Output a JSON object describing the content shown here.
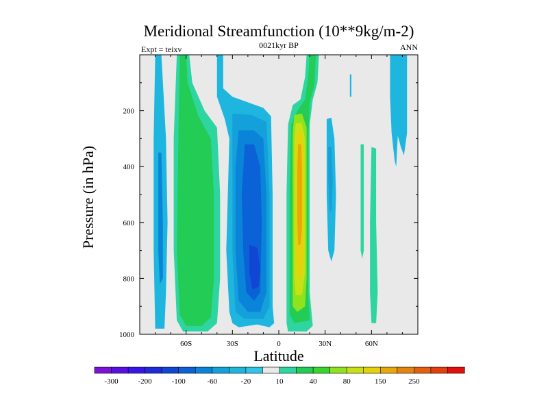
{
  "chart_data": {
    "type": "heatmap",
    "title": "Meridional Streamfunction (10**9kg/m-2)",
    "subtitle_left": "Expt = teixv",
    "subtitle_center": "0021kyr BP",
    "subtitle_right": "ANN",
    "xlabel": "Latitude",
    "ylabel": "Pressure (in hPa)",
    "xlim": [
      -90,
      90
    ],
    "ylim": [
      1000,
      0
    ],
    "x_ticks": [
      {
        "value": -60,
        "label": "60S"
      },
      {
        "value": -30,
        "label": "30S"
      },
      {
        "value": 0,
        "label": "0"
      },
      {
        "value": 30,
        "label": "30N"
      },
      {
        "value": 60,
        "label": "60N"
      }
    ],
    "y_ticks": [
      {
        "value": 200,
        "label": "200"
      },
      {
        "value": 400,
        "label": "400"
      },
      {
        "value": 600,
        "label": "600"
      },
      {
        "value": 800,
        "label": "800"
      },
      {
        "value": 1000,
        "label": "1000"
      }
    ],
    "colorbar": {
      "colors": [
        "#7a12d8",
        "#5a0fe0",
        "#3a16e6",
        "#1f2ad8",
        "#0f46d4",
        "#0a62d6",
        "#0a84d8",
        "#14a0da",
        "#1eb6df",
        "#2ec6e4",
        "#e9e9e9",
        "#2fd5a0",
        "#22cc55",
        "#38d62a",
        "#8fe21e",
        "#c8e114",
        "#e6d20c",
        "#e8a808",
        "#e58410",
        "#e2600e",
        "#e33e0e",
        "#e0100e"
      ],
      "labels": [
        {
          "index": 1,
          "text": "-300"
        },
        {
          "index": 3,
          "text": "-200"
        },
        {
          "index": 5,
          "text": "-100"
        },
        {
          "index": 7,
          "text": "-60"
        },
        {
          "index": 9,
          "text": "-20"
        },
        {
          "index": 11,
          "text": "10"
        },
        {
          "index": 13,
          "text": "40"
        },
        {
          "index": 15,
          "text": "80"
        },
        {
          "index": 17,
          "text": "150"
        },
        {
          "index": 19,
          "text": "250"
        }
      ]
    },
    "contour_regions": [
      {
        "name": "sh-polar-light",
        "color": "#1eb6df",
        "level": -20,
        "points": [
          [
            -80,
            0
          ],
          [
            -76,
            0
          ],
          [
            -73,
            300
          ],
          [
            -72,
            600
          ],
          [
            -73,
            850
          ],
          [
            -74,
            980
          ],
          [
            -80,
            980
          ],
          [
            -81,
            700
          ],
          [
            -81,
            300
          ]
        ]
      },
      {
        "name": "sh-polar-mid",
        "color": "#0a84d8",
        "level": -60,
        "points": [
          [
            -78,
            350
          ],
          [
            -76,
            350
          ],
          [
            -75,
            600
          ],
          [
            -75,
            800
          ],
          [
            -77,
            820
          ],
          [
            -78,
            700
          ]
        ]
      },
      {
        "name": "sh-ferrel-outer",
        "color": "#2fd5a0",
        "level": 10,
        "points": [
          [
            -66,
            0
          ],
          [
            -58,
            0
          ],
          [
            -56,
            100
          ],
          [
            -48,
            200
          ],
          [
            -40,
            260
          ],
          [
            -38,
            500
          ],
          [
            -38,
            800
          ],
          [
            -40,
            960
          ],
          [
            -46,
            990
          ],
          [
            -62,
            990
          ],
          [
            -66,
            950
          ],
          [
            -68,
            700
          ],
          [
            -68,
            300
          ]
        ]
      },
      {
        "name": "sh-ferrel-inner",
        "color": "#22cc55",
        "level": 20,
        "points": [
          [
            -64,
            0
          ],
          [
            -60,
            0
          ],
          [
            -59,
            100
          ],
          [
            -52,
            220
          ],
          [
            -44,
            300
          ],
          [
            -42,
            500
          ],
          [
            -42,
            800
          ],
          [
            -44,
            940
          ],
          [
            -50,
            970
          ],
          [
            -60,
            970
          ],
          [
            -64,
            930
          ],
          [
            -66,
            700
          ],
          [
            -65,
            300
          ]
        ]
      },
      {
        "name": "sh-hadley-1",
        "color": "#1eb6df",
        "level": -20,
        "points": [
          [
            -40,
            0
          ],
          [
            -36,
            0
          ],
          [
            -36,
            120
          ],
          [
            -30,
            150
          ],
          [
            -20,
            170
          ],
          [
            -10,
            190
          ],
          [
            -5,
            220
          ],
          [
            -4,
            500
          ],
          [
            -4,
            900
          ],
          [
            -3,
            960
          ],
          [
            -6,
            975
          ],
          [
            -14,
            965
          ],
          [
            -26,
            975
          ],
          [
            -30,
            960
          ],
          [
            -32,
            920
          ],
          [
            -34,
            700
          ],
          [
            -33,
            500
          ],
          [
            -32,
            300
          ],
          [
            -35,
            230
          ],
          [
            -40,
            150
          ]
        ]
      },
      {
        "name": "sh-hadley-2",
        "color": "#14a0da",
        "level": -40,
        "points": [
          [
            -30,
            210
          ],
          [
            -18,
            215
          ],
          [
            -8,
            240
          ],
          [
            -6,
            500
          ],
          [
            -6,
            900
          ],
          [
            -10,
            945
          ],
          [
            -22,
            945
          ],
          [
            -28,
            920
          ],
          [
            -30,
            700
          ],
          [
            -30,
            400
          ]
        ]
      },
      {
        "name": "sh-hadley-3",
        "color": "#0a84d8",
        "level": -60,
        "points": [
          [
            -26,
            270
          ],
          [
            -16,
            270
          ],
          [
            -10,
            300
          ],
          [
            -8,
            500
          ],
          [
            -8,
            850
          ],
          [
            -12,
            920
          ],
          [
            -20,
            920
          ],
          [
            -26,
            880
          ],
          [
            -28,
            700
          ],
          [
            -28,
            400
          ]
        ]
      },
      {
        "name": "sh-hadley-4",
        "color": "#0a62d6",
        "level": -80,
        "points": [
          [
            -22,
            320
          ],
          [
            -16,
            320
          ],
          [
            -12,
            400
          ],
          [
            -11,
            600
          ],
          [
            -12,
            850
          ],
          [
            -16,
            880
          ],
          [
            -21,
            850
          ],
          [
            -23,
            700
          ],
          [
            -24,
            500
          ]
        ]
      },
      {
        "name": "sh-hadley-5",
        "color": "#0f46d4",
        "level": -100,
        "points": [
          [
            -19,
            680
          ],
          [
            -14,
            690
          ],
          [
            -12,
            760
          ],
          [
            -13,
            830
          ],
          [
            -17,
            840
          ],
          [
            -19,
            780
          ]
        ]
      },
      {
        "name": "nh-hadley-1",
        "color": "#2fd5a0",
        "level": 10,
        "points": [
          [
            18,
            0
          ],
          [
            26,
            0
          ],
          [
            25,
            100
          ],
          [
            22,
            160
          ],
          [
            20,
            250
          ],
          [
            20,
            600
          ],
          [
            20,
            850
          ],
          [
            22,
            970
          ],
          [
            18,
            990
          ],
          [
            6,
            990
          ],
          [
            5,
            960
          ],
          [
            5,
            500
          ],
          [
            6,
            250
          ],
          [
            9,
            180
          ],
          [
            14,
            160
          ],
          [
            17,
            80
          ]
        ]
      },
      {
        "name": "nh-hadley-2",
        "color": "#22cc55",
        "level": 20,
        "points": [
          [
            20,
            0
          ],
          [
            24,
            0
          ],
          [
            23,
            110
          ],
          [
            20,
            170
          ],
          [
            19,
            300
          ],
          [
            19,
            850
          ],
          [
            20,
            950
          ],
          [
            10,
            960
          ],
          [
            7,
            930
          ],
          [
            7,
            500
          ],
          [
            8,
            250
          ],
          [
            12,
            200
          ],
          [
            17,
            160
          ],
          [
            19,
            80
          ]
        ]
      },
      {
        "name": "nh-hadley-3",
        "color": "#8fe21e",
        "level": 40,
        "points": [
          [
            10,
            215
          ],
          [
            15,
            210
          ],
          [
            18,
            260
          ],
          [
            18,
            800
          ],
          [
            17,
            900
          ],
          [
            12,
            920
          ],
          [
            9,
            900
          ],
          [
            9,
            500
          ],
          [
            9,
            280
          ]
        ]
      },
      {
        "name": "nh-hadley-4",
        "color": "#c8e114",
        "level": 60,
        "points": [
          [
            11,
            245
          ],
          [
            15,
            245
          ],
          [
            17,
            300
          ],
          [
            17,
            780
          ],
          [
            15,
            860
          ],
          [
            11,
            860
          ],
          [
            10,
            800
          ],
          [
            10,
            300
          ]
        ]
      },
      {
        "name": "nh-hadley-5",
        "color": "#e6d20c",
        "level": 80,
        "points": [
          [
            12,
            275
          ],
          [
            15,
            275
          ],
          [
            16,
            350
          ],
          [
            16,
            700
          ],
          [
            15,
            800
          ],
          [
            12,
            800
          ],
          [
            11,
            700
          ],
          [
            11,
            350
          ]
        ]
      },
      {
        "name": "nh-hadley-6",
        "color": "#e8a808",
        "level": 100,
        "points": [
          [
            12.5,
            320
          ],
          [
            14.5,
            320
          ],
          [
            15,
            400
          ],
          [
            15,
            620
          ],
          [
            14,
            680
          ],
          [
            12.5,
            680
          ],
          [
            12,
            600
          ],
          [
            12,
            400
          ]
        ]
      },
      {
        "name": "nh-ferrel-1",
        "color": "#1eb6df",
        "level": -20,
        "points": [
          [
            31,
            230
          ],
          [
            34,
            225
          ],
          [
            36,
            300
          ],
          [
            37,
            500
          ],
          [
            36,
            700
          ],
          [
            34,
            740
          ],
          [
            32,
            700
          ],
          [
            31,
            500
          ]
        ]
      },
      {
        "name": "nh-ferrel-2",
        "color": "#14a0da",
        "level": -40,
        "points": [
          [
            32,
            330
          ],
          [
            34,
            330
          ],
          [
            35,
            450
          ],
          [
            34,
            560
          ],
          [
            33,
            560
          ],
          [
            32,
            450
          ]
        ]
      },
      {
        "name": "nh-ferrel-3",
        "color": "#1eb6df",
        "level": -20,
        "points": [
          [
            46,
            70
          ],
          [
            47,
            70
          ],
          [
            47,
            150
          ],
          [
            46,
            150
          ]
        ]
      },
      {
        "name": "nh-polar-1",
        "color": "#2fd5a0",
        "level": 10,
        "points": [
          [
            60,
            330
          ],
          [
            63,
            335
          ],
          [
            63,
            600
          ],
          [
            64,
            850
          ],
          [
            63,
            960
          ],
          [
            60,
            960
          ],
          [
            59,
            850
          ],
          [
            59,
            600
          ]
        ]
      },
      {
        "name": "nh-polar-2",
        "color": "#2fd5a0",
        "level": 10,
        "points": [
          [
            53,
            320
          ],
          [
            55,
            320
          ],
          [
            55,
            700
          ],
          [
            54,
            730
          ],
          [
            53,
            700
          ]
        ]
      },
      {
        "name": "nh-polar-3",
        "color": "#1eb6df",
        "level": -20,
        "points": [
          [
            72,
            0
          ],
          [
            83,
            0
          ],
          [
            83,
            280
          ],
          [
            81,
            360
          ],
          [
            79,
            330
          ],
          [
            77,
            290
          ],
          [
            76,
            400
          ],
          [
            75,
            380
          ],
          [
            73,
            280
          ],
          [
            72,
            150
          ]
        ]
      }
    ]
  }
}
